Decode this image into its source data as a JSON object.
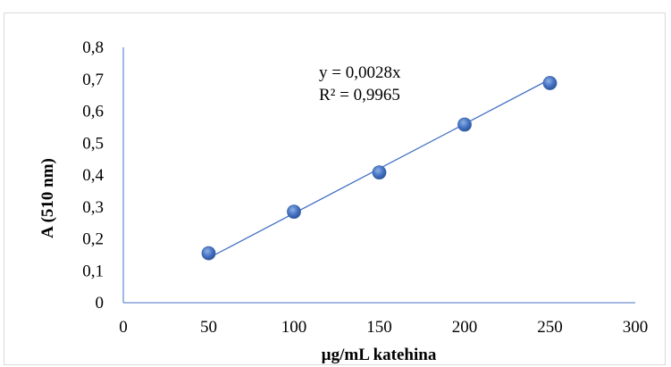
{
  "chart_data": {
    "type": "scatter",
    "title": "",
    "xlabel": "µg/mL katehina",
    "ylabel": "A (510 nm)",
    "xlim": [
      0,
      300
    ],
    "ylim": [
      0,
      0.8
    ],
    "x_ticks": [
      "0",
      "50",
      "100",
      "150",
      "200",
      "250",
      "300"
    ],
    "y_ticks": [
      "0",
      "0,1",
      "0,2",
      "0,3",
      "0,4",
      "0,5",
      "0,6",
      "0,7",
      "0,8"
    ],
    "grid": false,
    "legend": "none",
    "series": [
      {
        "x": [
          50,
          100,
          150,
          200,
          250
        ],
        "y": [
          0.155,
          0.285,
          0.408,
          0.558,
          0.688
        ],
        "color": "#4472c4"
      }
    ],
    "trendline": {
      "type": "linear",
      "slope": 0.0028,
      "intercept": 0,
      "x_range": [
        50,
        250
      ],
      "color": "#4472c4"
    },
    "annotations": {
      "equation": "y = 0,0028x",
      "r_squared": "R² = 0,9965"
    },
    "colors": {
      "axis": "#4472c4",
      "marker": "#4472c4",
      "frame": "#d9d9d9"
    }
  }
}
